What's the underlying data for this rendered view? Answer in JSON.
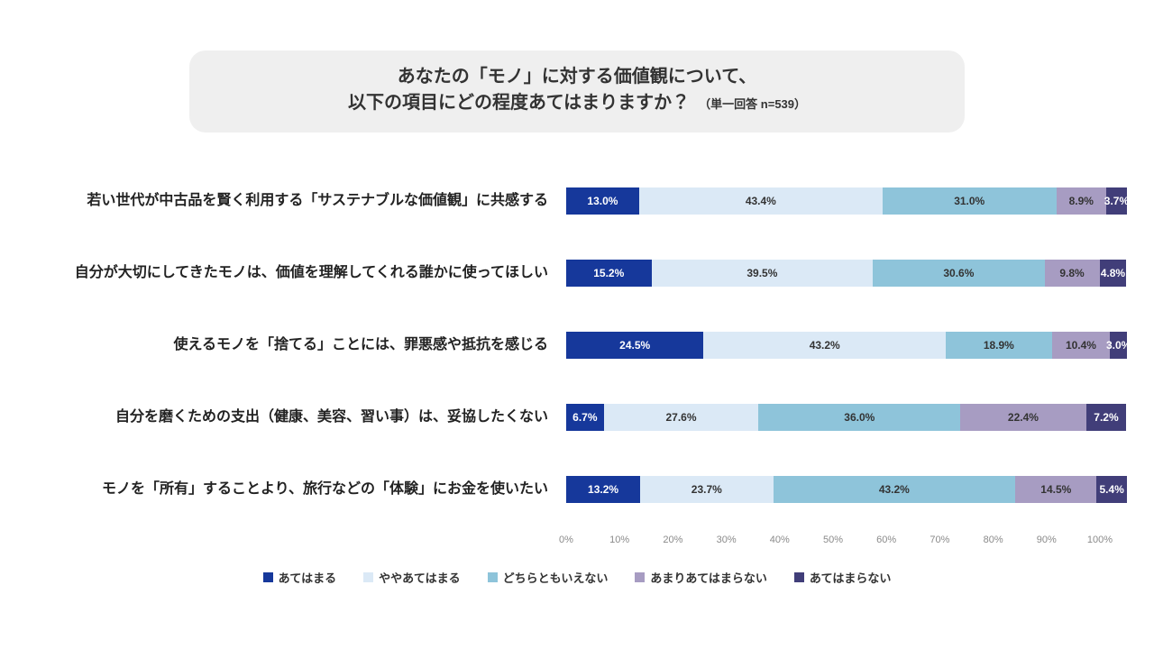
{
  "title": {
    "line1": "あなたの「モノ」に対する価値観について、",
    "line2": "以下の項目にどの程度あてはまりますか？",
    "note": "（単一回答 n=539）"
  },
  "chart_data": {
    "type": "bar",
    "stacked": true,
    "orientation": "horizontal",
    "title": "あなたの「モノ」に対する価値観について、以下の項目にどの程度あてはまりますか？",
    "subtitle": "（単一回答 n=539）",
    "categories": [
      "若い世代が中古品を賢く利用する「サステナブルな価値観」に共感する",
      "自分が大切にしてきたモノは、価値を理解してくれる誰かに使ってほしい",
      "使えるモノを「捨てる」ことには、罪悪感や抵抗を感じる",
      "自分を磨くための支出（健康、美容、習い事）は、妥協したくない",
      "モノを「所有」することより、旅行などの「体験」にお金を使いたい"
    ],
    "series": [
      {
        "name": "あてはまる",
        "color": "#16389b",
        "label_color": "#ffffff",
        "values": [
          13.0,
          15.2,
          24.5,
          6.7,
          13.2
        ]
      },
      {
        "name": "ややあてはまる",
        "color": "#dbe9f6",
        "label_color": "#333333",
        "values": [
          43.4,
          39.5,
          43.2,
          27.6,
          23.7
        ]
      },
      {
        "name": "どちらともいえない",
        "color": "#8ec4da",
        "label_color": "#333333",
        "values": [
          31.0,
          30.6,
          18.9,
          36.0,
          43.2
        ]
      },
      {
        "name": "あまりあてはまらない",
        "color": "#a79cc2",
        "label_color": "#333333",
        "values": [
          8.9,
          9.8,
          10.4,
          22.4,
          14.5
        ]
      },
      {
        "name": "あてはまらない",
        "color": "#413e79",
        "label_color": "#ffffff",
        "values": [
          3.7,
          4.8,
          3.0,
          7.2,
          5.4
        ]
      }
    ],
    "x_ticks": [
      "0%",
      "10%",
      "20%",
      "30%",
      "40%",
      "50%",
      "60%",
      "70%",
      "80%",
      "90%",
      "100%"
    ],
    "xlim": [
      0,
      100
    ],
    "value_suffix": "%",
    "legend_position": "bottom",
    "grid": false
  }
}
